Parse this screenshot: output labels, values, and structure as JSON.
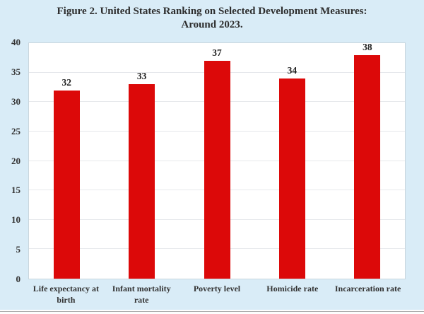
{
  "title": {
    "line1": "Figure 2. United States Ranking on Selected Development Measures:",
    "line2": "Around 2023."
  },
  "chart_data": {
    "type": "bar",
    "title": "Figure 2. United States Ranking on Selected Development Measures: Around 2023.",
    "categories": [
      "Life expectancy at birth",
      "Infant mortality rate",
      "Poverty level",
      "Homicide rate",
      "Incarceration rate"
    ],
    "values": [
      32,
      33,
      37,
      34,
      38
    ],
    "data_labels": [
      "32",
      "33",
      "37",
      "34",
      "38"
    ],
    "xlabel": "",
    "ylabel": "",
    "ylim": [
      0,
      40
    ],
    "yticks": [
      0,
      5,
      10,
      15,
      20,
      25,
      30,
      35,
      40
    ],
    "grid": true,
    "legend": "none",
    "colors": {
      "bar": "#dc0909",
      "page_background": "#d9ecf7",
      "plot_background": "#ffffff",
      "gridline": "#e6e8ec",
      "text": "#2d2d2d"
    }
  }
}
